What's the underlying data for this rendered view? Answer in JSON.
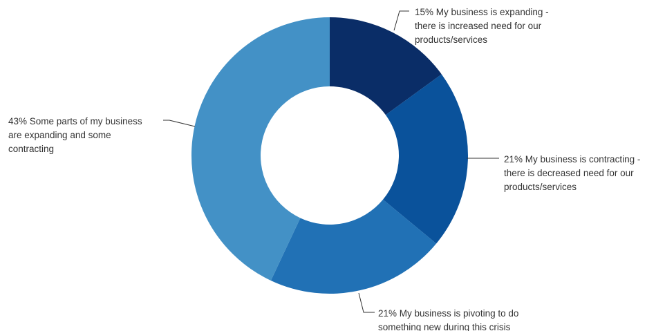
{
  "chart_data": {
    "type": "pie",
    "donut": true,
    "start_angle_deg": 0,
    "direction": "clockwise",
    "slices": [
      {
        "value": 15,
        "label_lines": [
          "15% My business is expanding -",
          "there is increased need for our",
          "products/services"
        ],
        "color": "#0a2d67"
      },
      {
        "value": 21,
        "label_lines": [
          "21% My business is contracting -",
          "there is decreased need for our",
          "products/services"
        ],
        "color": "#0a529b"
      },
      {
        "value": 21,
        "label_lines": [
          "21% My business is pivoting to do",
          "something new during this crisis"
        ],
        "color": "#2171b5"
      },
      {
        "value": 43,
        "label_lines": [
          "43% Some parts of my business",
          "are expanding and some",
          "contracting"
        ],
        "color": "#4391c6"
      }
    ]
  }
}
